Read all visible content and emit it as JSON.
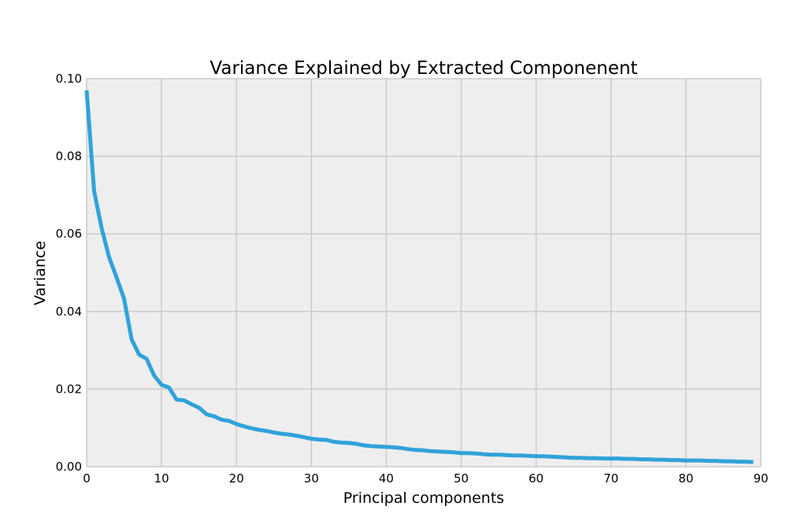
{
  "chart_data": {
    "type": "line",
    "title": "Variance Explained by Extracted Componenent",
    "xlabel": "Principal components",
    "ylabel": "Variance",
    "xlim": [
      0,
      90
    ],
    "ylim": [
      0.0,
      0.1
    ],
    "xticks": [
      0,
      10,
      20,
      30,
      40,
      50,
      60,
      70,
      80,
      90
    ],
    "xtick_labels": [
      "0",
      "10",
      "20",
      "30",
      "40",
      "50",
      "60",
      "70",
      "80",
      "90"
    ],
    "yticks": [
      0.0,
      0.02,
      0.04,
      0.06,
      0.08,
      0.1
    ],
    "ytick_labels": [
      "0.00",
      "0.02",
      "0.04",
      "0.06",
      "0.08",
      "0.10"
    ],
    "grid": true,
    "background_color": "#eeeeee",
    "grid_color": "#cbcbcb",
    "series": [
      {
        "color": "#30a2da",
        "x": [
          0,
          1,
          2,
          3,
          4,
          5,
          6,
          7,
          8,
          9,
          10,
          11,
          12,
          13,
          14,
          15,
          16,
          17,
          18,
          19,
          20,
          21,
          22,
          23,
          24,
          25,
          26,
          27,
          28,
          29,
          30,
          31,
          32,
          33,
          34,
          35,
          36,
          37,
          38,
          39,
          40,
          41,
          42,
          43,
          44,
          45,
          46,
          47,
          48,
          49,
          50,
          51,
          52,
          53,
          54,
          55,
          56,
          57,
          58,
          59,
          60,
          61,
          62,
          63,
          64,
          65,
          66,
          67,
          68,
          69,
          70,
          71,
          72,
          73,
          74,
          75,
          76,
          77,
          78,
          79,
          80,
          81,
          82,
          83,
          84,
          85,
          86,
          87,
          88,
          89
        ],
        "values": [
          0.097,
          0.071,
          0.0615,
          0.054,
          0.0488,
          0.0432,
          0.0328,
          0.0289,
          0.0278,
          0.0235,
          0.0211,
          0.0204,
          0.0173,
          0.0171,
          0.0161,
          0.0152,
          0.0135,
          0.013,
          0.0121,
          0.0118,
          0.011,
          0.0104,
          0.0099,
          0.0095,
          0.0092,
          0.0088,
          0.0085,
          0.0083,
          0.008,
          0.0076,
          0.0072,
          0.007,
          0.0069,
          0.0064,
          0.0062,
          0.0061,
          0.0059,
          0.0055,
          0.0053,
          0.0052,
          0.0051,
          0.005,
          0.0048,
          0.0045,
          0.0043,
          0.0042,
          0.004,
          0.0039,
          0.0038,
          0.0037,
          0.0035,
          0.0035,
          0.0034,
          0.0032,
          0.0031,
          0.0031,
          0.003,
          0.0029,
          0.0029,
          0.0028,
          0.0027,
          0.0027,
          0.0026,
          0.0025,
          0.0024,
          0.0023,
          0.0023,
          0.0022,
          0.0022,
          0.0021,
          0.0021,
          0.0021,
          0.002,
          0.002,
          0.0019,
          0.0019,
          0.0018,
          0.0018,
          0.0017,
          0.0017,
          0.0016,
          0.0016,
          0.0016,
          0.0015,
          0.0015,
          0.0014,
          0.0014,
          0.0013,
          0.0013,
          0.0012
        ]
      }
    ]
  }
}
